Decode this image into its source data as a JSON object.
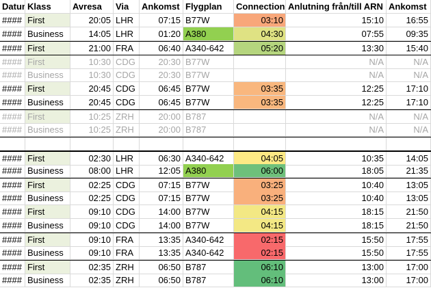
{
  "columns": [
    "Datum",
    "Klass",
    "Avresa",
    "Via",
    "Ankomst",
    "Flygplan",
    "Connection",
    "Anlutning från/till ARN",
    "Ankomst"
  ],
  "colors": {
    "hl": "#ebf1de",
    "orange": "#f8b47e",
    "yellow_green": "#c4d77c",
    "light_green": "#b5d57e",
    "green": "#63be7b",
    "yellow": "#fce985",
    "lime": "#92d050",
    "red": "#f8696b",
    "sand": "#f9d981"
  },
  "rows": [
    {
      "datum": "####",
      "klass": "First",
      "avresa": "20:05",
      "via": "LHR",
      "ankomst": "07:15",
      "flygplan": "B77W",
      "connection": "03:10",
      "arn": "15:10",
      "ankomst2": "16:55",
      "conn_color": "#f8a77a",
      "plane_color": "",
      "grey": false,
      "hl": true,
      "line": ""
    },
    {
      "datum": "####",
      "klass": "Business",
      "avresa": "14:05",
      "via": "LHR",
      "ankomst": "01:20",
      "flygplan": "A380",
      "connection": "04:30",
      "arn": "07:55",
      "ankomst2": "09:35",
      "conn_color": "#dfe283",
      "plane_color": "#92d050",
      "grey": false,
      "hl": false,
      "line": ""
    },
    {
      "datum": "####",
      "klass": "First",
      "avresa": "21:00",
      "via": "FRA",
      "ankomst": "06:40",
      "flygplan": "A340-642",
      "connection": "05:20",
      "arn": "13:30",
      "ankomst2": "15:40",
      "conn_color": "#b5d57e",
      "plane_color": "",
      "grey": false,
      "hl": true,
      "line": "top"
    },
    {
      "datum": "####",
      "klass": "First",
      "avresa": "10:30",
      "via": "CDG",
      "ankomst": "20:30",
      "flygplan": "B77W",
      "connection": "",
      "arn": "N/A",
      "ankomst2": "N/A",
      "conn_color": "",
      "plane_color": "",
      "grey": true,
      "hl": true,
      "line": "top"
    },
    {
      "datum": "####",
      "klass": "Business",
      "avresa": "10:30",
      "via": "CDG",
      "ankomst": "20:30",
      "flygplan": "B77W",
      "connection": "",
      "arn": "N/A",
      "ankomst2": "N/A",
      "conn_color": "",
      "plane_color": "",
      "grey": true,
      "hl": false,
      "line": ""
    },
    {
      "datum": "####",
      "klass": "First",
      "avresa": "20:45",
      "via": "CDG",
      "ankomst": "06:45",
      "flygplan": "B77W",
      "connection": "03:35",
      "arn": "12:25",
      "ankomst2": "17:10",
      "conn_color": "#f9b77e",
      "plane_color": "",
      "grey": false,
      "hl": true,
      "line": ""
    },
    {
      "datum": "####",
      "klass": "Business",
      "avresa": "20:45",
      "via": "CDG",
      "ankomst": "06:45",
      "flygplan": "B77W",
      "connection": "03:35",
      "arn": "12:25",
      "ankomst2": "17:10",
      "conn_color": "#f9b77e",
      "plane_color": "",
      "grey": false,
      "hl": false,
      "line": ""
    },
    {
      "datum": "####",
      "klass": "First",
      "avresa": "10:25",
      "via": "ZRH",
      "ankomst": "20:00",
      "flygplan": "B787",
      "connection": "",
      "arn": "N/A",
      "ankomst2": "N/A",
      "conn_color": "",
      "plane_color": "",
      "grey": true,
      "hl": true,
      "line": "top"
    },
    {
      "datum": "####",
      "klass": "Business",
      "avresa": "10:25",
      "via": "ZRH",
      "ankomst": "20:00",
      "flygplan": "B787",
      "connection": "",
      "arn": "N/A",
      "ankomst2": "N/A",
      "conn_color": "",
      "plane_color": "",
      "grey": true,
      "hl": false,
      "line": ""
    },
    {
      "datum": "",
      "klass": "",
      "avresa": "",
      "via": "",
      "ankomst": "",
      "flygplan": "",
      "connection": "",
      "arn": "",
      "ankomst2": "",
      "conn_color": "",
      "plane_color": "",
      "grey": false,
      "hl": false,
      "line": "top"
    },
    {
      "datum": "####",
      "klass": "First",
      "avresa": "02:30",
      "via": "LHR",
      "ankomst": "06:30",
      "flygplan": "A340-642",
      "connection": "04:05",
      "arn": "10:35",
      "ankomst2": "14:05",
      "conn_color": "#fce985",
      "plane_color": "",
      "grey": false,
      "hl": true,
      "line": "thick"
    },
    {
      "datum": "####",
      "klass": "Business",
      "avresa": "08:00",
      "via": "LHR",
      "ankomst": "12:05",
      "flygplan": "A380",
      "connection": "06:00",
      "arn": "18:05",
      "ankomst2": "21:35",
      "conn_color": "#6ec07b",
      "plane_color": "#92d050",
      "grey": false,
      "hl": false,
      "line": ""
    },
    {
      "datum": "####",
      "klass": "First",
      "avresa": "02:25",
      "via": "CDG",
      "ankomst": "07:15",
      "flygplan": "B77W",
      "connection": "03:25",
      "arn": "10:40",
      "ankomst2": "13:05",
      "conn_color": "#f9b07c",
      "plane_color": "",
      "grey": false,
      "hl": true,
      "line": "top"
    },
    {
      "datum": "####",
      "klass": "Business",
      "avresa": "02:25",
      "via": "CDG",
      "ankomst": "07:15",
      "flygplan": "B77W",
      "connection": "03:25",
      "arn": "10:40",
      "ankomst2": "13:05",
      "conn_color": "#f9b07c",
      "plane_color": "",
      "grey": false,
      "hl": false,
      "line": ""
    },
    {
      "datum": "####",
      "klass": "First",
      "avresa": "09:10",
      "via": "CDG",
      "ankomst": "14:00",
      "flygplan": "B77W",
      "connection": "04:15",
      "arn": "18:15",
      "ankomst2": "21:50",
      "conn_color": "#f3e884",
      "plane_color": "",
      "grey": false,
      "hl": true,
      "line": ""
    },
    {
      "datum": "####",
      "klass": "Business",
      "avresa": "09:10",
      "via": "CDG",
      "ankomst": "14:00",
      "flygplan": "B77W",
      "connection": "04:15",
      "arn": "18:15",
      "ankomst2": "21:50",
      "conn_color": "#f3e884",
      "plane_color": "",
      "grey": false,
      "hl": false,
      "line": ""
    },
    {
      "datum": "####",
      "klass": "First",
      "avresa": "09:10",
      "via": "FRA",
      "ankomst": "13:35",
      "flygplan": "A340-642",
      "connection": "02:15",
      "arn": "15:50",
      "ankomst2": "17:55",
      "conn_color": "#f8696b",
      "plane_color": "",
      "grey": false,
      "hl": true,
      "line": "top"
    },
    {
      "datum": "####",
      "klass": "Business",
      "avresa": "09:10",
      "via": "FRA",
      "ankomst": "13:35",
      "flygplan": "A340-642",
      "connection": "02:15",
      "arn": "15:50",
      "ankomst2": "17:55",
      "conn_color": "#f8696b",
      "plane_color": "",
      "grey": false,
      "hl": false,
      "line": ""
    },
    {
      "datum": "####",
      "klass": "First",
      "avresa": "02:35",
      "via": "ZRH",
      "ankomst": "06:50",
      "flygplan": "B787",
      "connection": "06:10",
      "arn": "13:00",
      "ankomst2": "17:00",
      "conn_color": "#63be7b",
      "plane_color": "",
      "grey": false,
      "hl": true,
      "line": "top"
    },
    {
      "datum": "####",
      "klass": "Business",
      "avresa": "02:35",
      "via": "ZRH",
      "ankomst": "06:50",
      "flygplan": "B787",
      "connection": "06:10",
      "arn": "13:00",
      "ankomst2": "17:00",
      "conn_color": "#63be7b",
      "plane_color": "",
      "grey": false,
      "hl": false,
      "line": ""
    }
  ]
}
